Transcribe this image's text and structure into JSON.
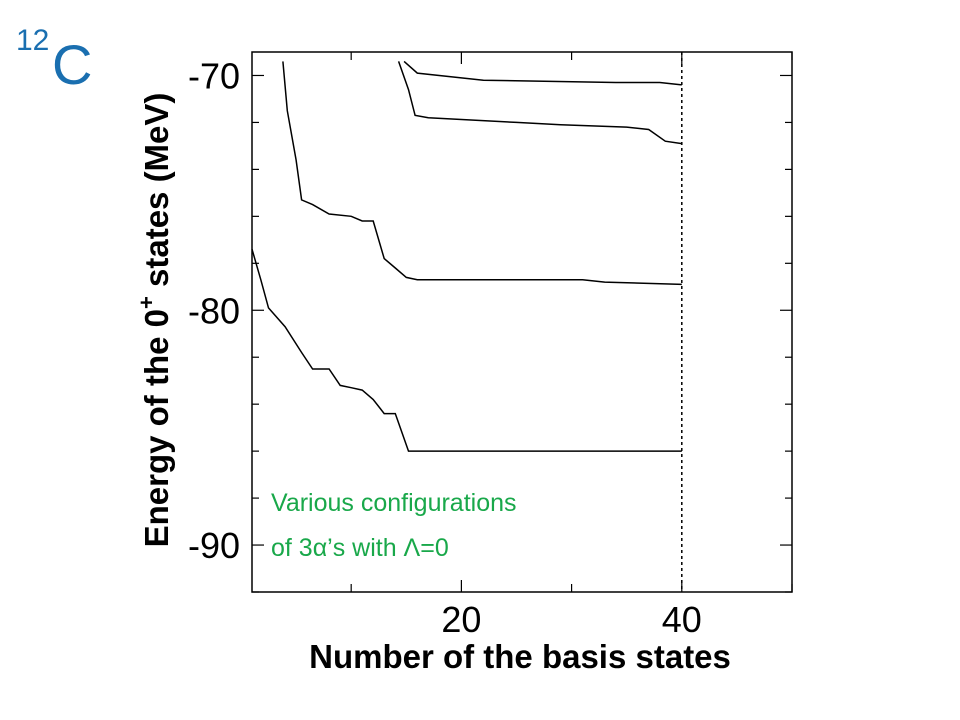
{
  "nucleus": {
    "mass_number": "12",
    "symbol": "C"
  },
  "chart_data": {
    "type": "line",
    "xlabel": "Number of the basis states",
    "ylabel_parts": {
      "pre": "Energy of the 0",
      "sup": "+",
      "post": " states (MeV)"
    },
    "xlim": [
      1,
      50
    ],
    "ylim": [
      -92,
      -69
    ],
    "x_ticks": [
      20,
      40
    ],
    "y_ticks": [
      -70,
      -80,
      -90
    ],
    "vertical_dashed_line_x": 40,
    "annotation_lines": [
      "Various configurations",
      "of 3α’s  with Λ=0"
    ],
    "annotation_color": "#19a84a",
    "line_color": "#000000",
    "series": [
      {
        "points": [
          [
            1,
            -77.4
          ],
          [
            1.8,
            -78.7
          ],
          [
            2.5,
            -79.9
          ],
          [
            4,
            -80.7
          ],
          [
            5.5,
            -81.8
          ],
          [
            6.5,
            -82.5
          ],
          [
            8,
            -82.5
          ],
          [
            9,
            -83.2
          ],
          [
            10,
            -83.3
          ],
          [
            11,
            -83.4
          ],
          [
            12,
            -83.8
          ],
          [
            13,
            -84.4
          ],
          [
            14,
            -84.4
          ],
          [
            15.2,
            -86
          ],
          [
            20,
            -86
          ],
          [
            30,
            -86
          ],
          [
            40,
            -86
          ]
        ]
      },
      {
        "points": [
          [
            3.8,
            -69.4
          ],
          [
            4.2,
            -71.5
          ],
          [
            5,
            -73.6
          ],
          [
            5.5,
            -75.3
          ],
          [
            6.5,
            -75.5
          ],
          [
            8,
            -75.9
          ],
          [
            10,
            -76
          ],
          [
            11,
            -76.2
          ],
          [
            12,
            -76.2
          ],
          [
            13,
            -77.8
          ],
          [
            14,
            -78.2
          ],
          [
            15,
            -78.6
          ],
          [
            16,
            -78.7
          ],
          [
            25,
            -78.7
          ],
          [
            31,
            -78.7
          ],
          [
            33,
            -78.8
          ],
          [
            40,
            -78.9
          ]
        ]
      },
      {
        "points": [
          [
            14.3,
            -69.4
          ],
          [
            15.2,
            -70.6
          ],
          [
            15.8,
            -71.7
          ],
          [
            17,
            -71.8
          ],
          [
            25,
            -72.0
          ],
          [
            29,
            -72.1
          ],
          [
            35,
            -72.2
          ],
          [
            37,
            -72.3
          ],
          [
            38.5,
            -72.8
          ],
          [
            40,
            -72.9
          ]
        ]
      },
      {
        "points": [
          [
            14.8,
            -69.4
          ],
          [
            16,
            -69.9
          ],
          [
            22,
            -70.2
          ],
          [
            34,
            -70.3
          ],
          [
            38,
            -70.3
          ],
          [
            40,
            -70.4
          ]
        ]
      }
    ]
  }
}
